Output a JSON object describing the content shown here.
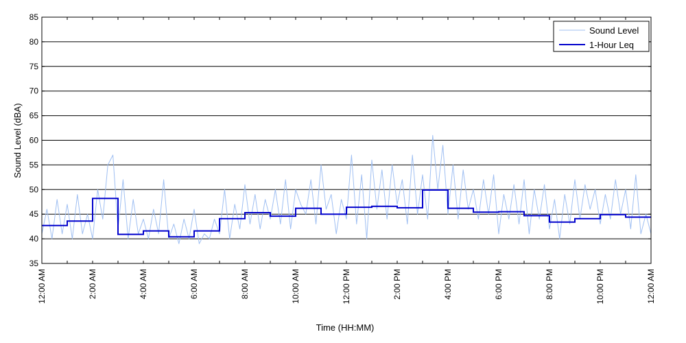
{
  "chart_data": {
    "type": "line",
    "title": "",
    "xlabel": "Time (HH:MM)",
    "ylabel": "Sound Level (dBA)",
    "xlim": [
      0,
      24
    ],
    "ylim": [
      35,
      85
    ],
    "y_ticks": [
      35,
      40,
      45,
      50,
      55,
      60,
      65,
      70,
      75,
      80,
      85
    ],
    "x_ticks": [
      {
        "hour": 0,
        "label": "12:00 AM"
      },
      {
        "hour": 2,
        "label": "2:00 AM"
      },
      {
        "hour": 4,
        "label": "4:00 AM"
      },
      {
        "hour": 6,
        "label": "6:00 AM"
      },
      {
        "hour": 8,
        "label": "8:00 AM"
      },
      {
        "hour": 10,
        "label": "10:00 AM"
      },
      {
        "hour": 12,
        "label": "12:00 PM"
      },
      {
        "hour": 14,
        "label": "2:00 PM"
      },
      {
        "hour": 16,
        "label": "4:00 PM"
      },
      {
        "hour": 18,
        "label": "6:00 PM"
      },
      {
        "hour": 20,
        "label": "8:00 PM"
      },
      {
        "hour": 22,
        "label": "10:00 PM"
      },
      {
        "hour": 24,
        "label": "12:00 AM"
      }
    ],
    "grid": "horizontal",
    "legend_position": "top-right",
    "series": [
      {
        "name": "Sound Level",
        "color": "#9fbff2",
        "style": "thin-line",
        "x": [
          0,
          0.2,
          0.4,
          0.6,
          0.8,
          1,
          1.2,
          1.4,
          1.6,
          1.8,
          2,
          2.2,
          2.4,
          2.6,
          2.8,
          3,
          3.2,
          3.4,
          3.6,
          3.8,
          4,
          4.2,
          4.4,
          4.6,
          4.8,
          5,
          5.2,
          5.4,
          5.6,
          5.8,
          6,
          6.2,
          6.4,
          6.6,
          6.8,
          7,
          7.2,
          7.4,
          7.6,
          7.8,
          8,
          8.2,
          8.4,
          8.6,
          8.8,
          9,
          9.2,
          9.4,
          9.6,
          9.8,
          10,
          10.2,
          10.4,
          10.6,
          10.8,
          11,
          11.2,
          11.4,
          11.6,
          11.8,
          12,
          12.2,
          12.4,
          12.6,
          12.8,
          13,
          13.2,
          13.4,
          13.6,
          13.8,
          14,
          14.2,
          14.4,
          14.6,
          14.8,
          15,
          15.2,
          15.4,
          15.6,
          15.8,
          16,
          16.2,
          16.4,
          16.6,
          16.8,
          17,
          17.2,
          17.4,
          17.6,
          17.8,
          18,
          18.2,
          18.4,
          18.6,
          18.8,
          19,
          19.2,
          19.4,
          19.6,
          19.8,
          20,
          20.2,
          20.4,
          20.6,
          20.8,
          21,
          21.2,
          21.4,
          21.6,
          21.8,
          22,
          22.2,
          22.4,
          22.6,
          22.8,
          23,
          23.2,
          23.4,
          23.6,
          23.8,
          24
        ],
        "values": [
          41,
          46,
          40,
          48,
          41,
          47,
          40,
          49,
          41,
          45,
          40,
          50,
          44,
          55,
          57,
          42,
          52,
          40,
          48,
          41,
          44,
          40,
          46,
          41,
          52,
          40,
          43,
          39,
          44,
          40,
          46,
          39,
          41,
          40,
          44,
          41,
          50,
          40,
          47,
          42,
          51,
          43,
          49,
          42,
          48,
          44,
          50,
          43,
          52,
          42,
          50,
          47,
          45,
          52,
          43,
          55,
          46,
          49,
          41,
          48,
          44,
          57,
          43,
          53,
          40,
          56,
          46,
          54,
          44,
          55,
          47,
          52,
          43,
          57,
          45,
          53,
          44,
          61,
          50,
          59,
          45,
          55,
          44,
          54,
          46,
          50,
          44,
          52,
          45,
          53,
          41,
          49,
          44,
          51,
          43,
          52,
          41,
          50,
          44,
          51,
          42,
          48,
          40,
          49,
          43,
          52,
          44,
          51,
          46,
          50,
          43,
          49,
          44,
          52,
          45,
          50,
          42,
          53,
          41,
          45,
          41
        ]
      },
      {
        "name": "1-Hour Leq",
        "color": "#0000cc",
        "style": "step",
        "x": [
          0,
          1,
          2,
          3,
          4,
          5,
          6,
          7,
          8,
          9,
          10,
          11,
          12,
          13,
          14,
          15,
          16,
          17,
          18,
          19,
          20,
          21,
          22,
          23
        ],
        "values": [
          42.7,
          43.6,
          48.2,
          40.9,
          41.6,
          40.4,
          41.6,
          44.1,
          45.3,
          44.6,
          46.2,
          45.0,
          46.4,
          46.6,
          46.3,
          49.9,
          46.2,
          45.4,
          45.5,
          44.7,
          43.4,
          44.1,
          44.9,
          44.4
        ]
      }
    ]
  }
}
